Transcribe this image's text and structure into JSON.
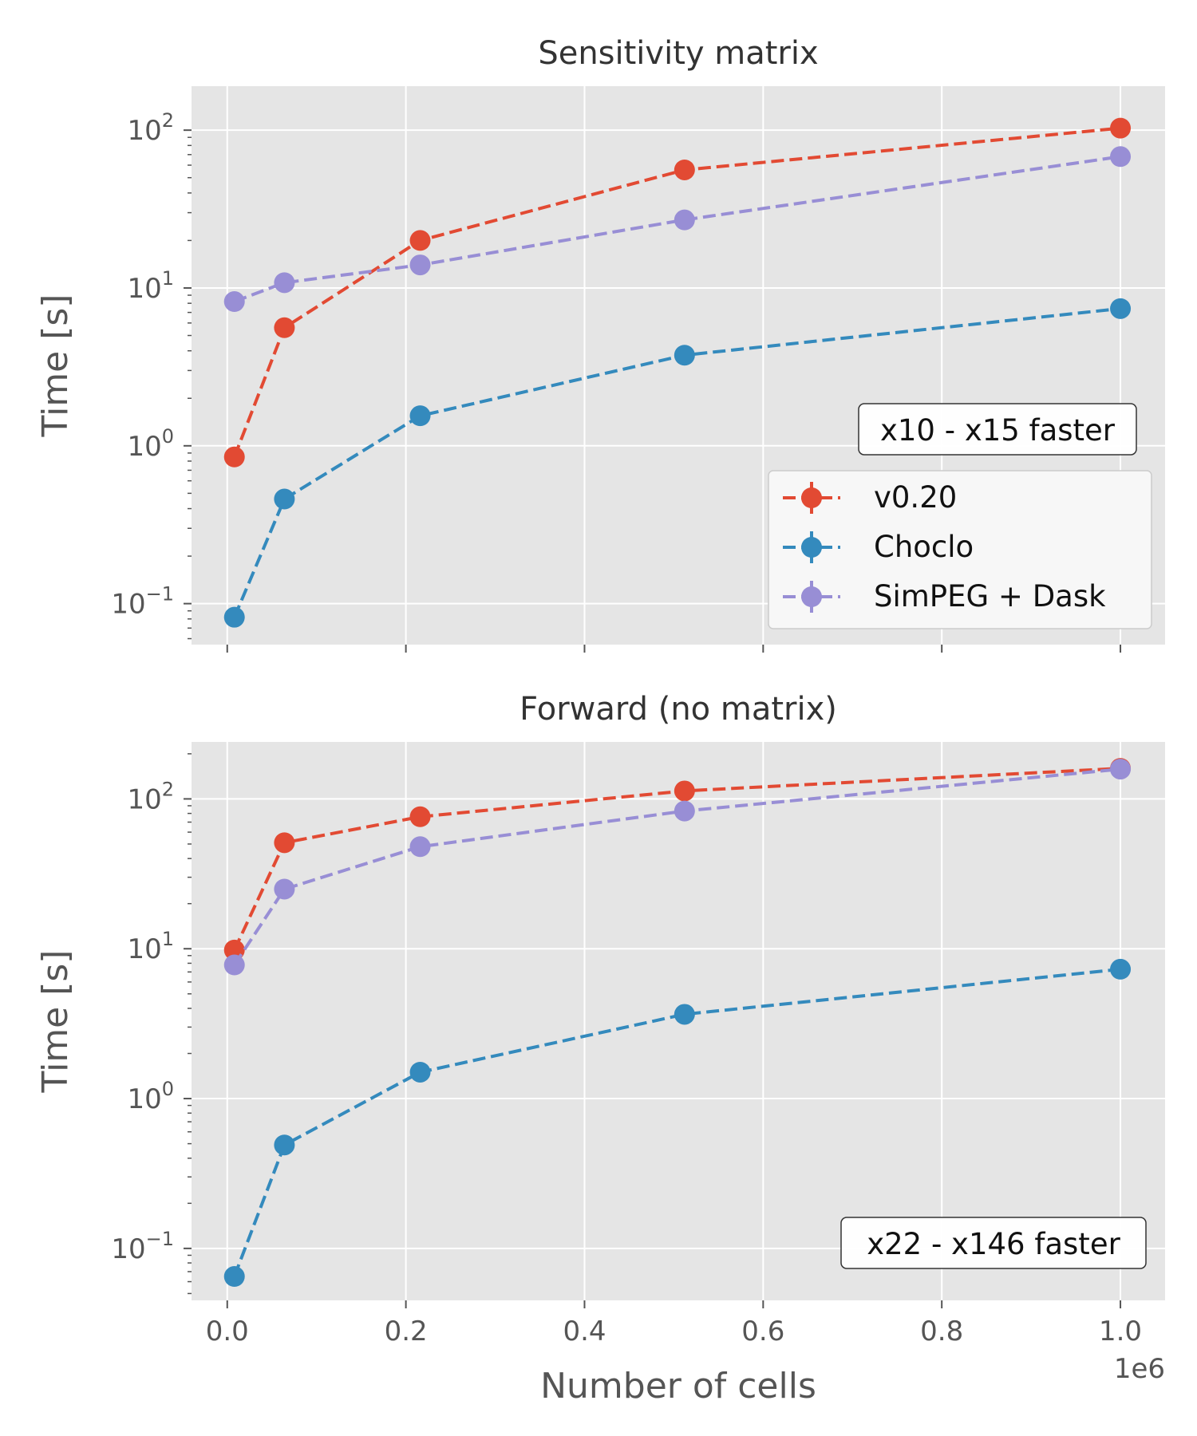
{
  "chart_data": [
    {
      "type": "line",
      "title": "Sensitivity matrix",
      "xlabel": "",
      "ylabel": "Time [s]",
      "y_scale": "log",
      "ylim": [
        0.055,
        190
      ],
      "xlim": [
        -0.04,
        1.05
      ],
      "x_multiplier": "1e6",
      "x_tick_labels_shown": false,
      "y_ticks": [
        {
          "base": "10",
          "exp": "−1"
        },
        {
          "base": "10",
          "exp": "0"
        },
        {
          "base": "10",
          "exp": "1"
        },
        {
          "base": "10",
          "exp": "2"
        }
      ],
      "grid": true,
      "legend_placement": "lower-right",
      "annotation": "x10 - x15 faster",
      "series": [
        {
          "name": "v0.20",
          "color": "#E24A33",
          "x": [
            0.008,
            0.064,
            0.216,
            0.512,
            1.0
          ],
          "y": [
            0.85,
            5.6,
            20,
            56,
            103
          ]
        },
        {
          "name": "Choclo",
          "color": "#348ABD",
          "x": [
            0.008,
            0.064,
            0.216,
            0.512,
            1.0
          ],
          "y": [
            0.082,
            0.46,
            1.55,
            3.75,
            7.4
          ]
        },
        {
          "name": "SimPEG + Dask",
          "color": "#988ED5",
          "x": [
            0.008,
            0.064,
            0.216,
            0.512,
            1.0
          ],
          "y": [
            8.2,
            10.8,
            14,
            27,
            68
          ]
        }
      ]
    },
    {
      "type": "line",
      "title": "Forward (no matrix)",
      "xlabel": "Number of cells",
      "ylabel": "Time [s]",
      "y_scale": "log",
      "ylim": [
        0.045,
        240
      ],
      "xlim": [
        -0.04,
        1.05
      ],
      "x_multiplier": "1e6",
      "x_ticks": [
        "0.0",
        "0.2",
        "0.4",
        "0.6",
        "0.8",
        "1.0"
      ],
      "x_tick_labels_shown": true,
      "y_ticks": [
        {
          "base": "10",
          "exp": "−1"
        },
        {
          "base": "10",
          "exp": "0"
        },
        {
          "base": "10",
          "exp": "1"
        },
        {
          "base": "10",
          "exp": "2"
        }
      ],
      "grid": true,
      "annotation": "x22 - x146 faster",
      "series": [
        {
          "name": "v0.20",
          "color": "#E24A33",
          "x": [
            0.008,
            0.064,
            0.216,
            0.512,
            1.0
          ],
          "y": [
            9.8,
            51,
            76,
            113,
            160
          ]
        },
        {
          "name": "Choclo",
          "color": "#348ABD",
          "x": [
            0.008,
            0.064,
            0.216,
            0.512,
            1.0
          ],
          "y": [
            0.065,
            0.49,
            1.5,
            3.65,
            7.3
          ]
        },
        {
          "name": "SimPEG + Dask",
          "color": "#988ED5",
          "x": [
            0.008,
            0.064,
            0.216,
            0.512,
            1.0
          ],
          "y": [
            7.8,
            25,
            48,
            83,
            158
          ]
        }
      ]
    }
  ]
}
